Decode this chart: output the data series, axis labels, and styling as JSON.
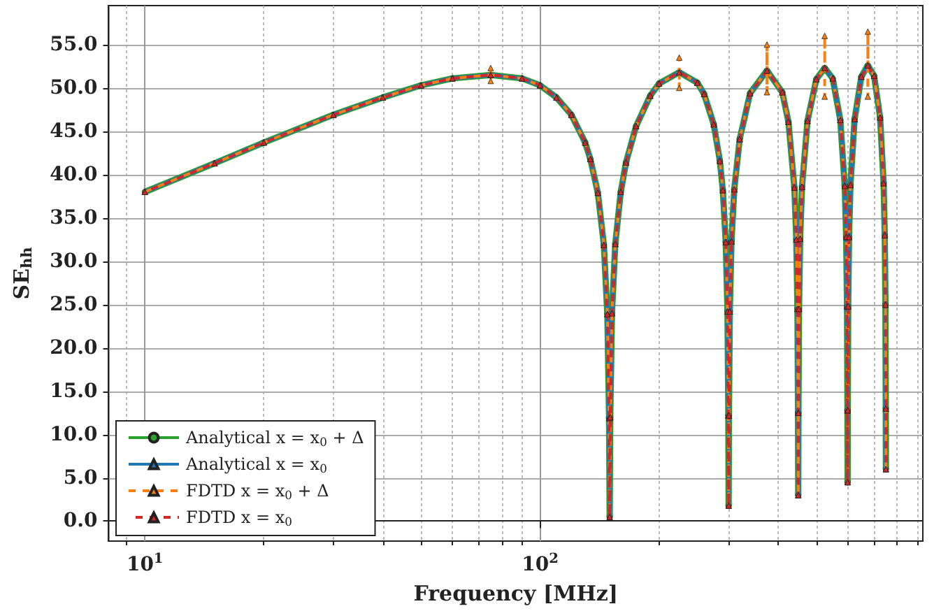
{
  "chart_data": {
    "type": "line",
    "xlabel": "Frequency [MHz]",
    "ylabel": "SE$_{hh}$",
    "log": "x",
    "grid": true,
    "legend": "bottom left",
    "xlim": [
      8.1,
      930
    ],
    "ylim": [
      -2.3,
      59.5
    ],
    "xticks": [
      {
        "value": 9,
        "label": null
      },
      {
        "value": 10,
        "label": "10$^{1}$"
      },
      {
        "value": 20,
        "label": null
      },
      {
        "value": 30,
        "label": null
      },
      {
        "value": 40,
        "label": null
      },
      {
        "value": 50,
        "label": null
      },
      {
        "value": 60,
        "label": null
      },
      {
        "value": 70,
        "label": null
      },
      {
        "value": 80,
        "label": null
      },
      {
        "value": 90,
        "label": null
      },
      {
        "value": 100,
        "label": "10$^{2}$"
      },
      {
        "value": 200,
        "label": null
      },
      {
        "value": 300,
        "label": null
      },
      {
        "value": 400,
        "label": null
      },
      {
        "value": 500,
        "label": null
      },
      {
        "value": 600,
        "label": null
      },
      {
        "value": 700,
        "label": null
      },
      {
        "value": 800,
        "label": null
      },
      {
        "value": 900,
        "label": null
      }
    ],
    "yticks": [
      {
        "value": 0,
        "label": "0.0"
      },
      {
        "value": 5,
        "label": "5.0"
      },
      {
        "value": 10,
        "label": "10.0"
      },
      {
        "value": 15,
        "label": "15.0"
      },
      {
        "value": 20,
        "label": "20.0"
      },
      {
        "value": 25,
        "label": "25.0"
      },
      {
        "value": 30,
        "label": "30.0"
      },
      {
        "value": 35,
        "label": "35.0"
      },
      {
        "value": 40,
        "label": "40.0"
      },
      {
        "value": 45,
        "label": "45.0"
      },
      {
        "value": 50,
        "label": "50.0"
      },
      {
        "value": 55,
        "label": "55.0"
      }
    ],
    "x": [
      10,
      15,
      20,
      30,
      40,
      50,
      60,
      75,
      90,
      100,
      110,
      120,
      130,
      134,
      140,
      145,
      148,
      149.5,
      150,
      150.5,
      152,
      155,
      160,
      165,
      175,
      190,
      200,
      225,
      250,
      260,
      275,
      285,
      290,
      295,
      298,
      299.5,
      300,
      300.5,
      302,
      305,
      310,
      320,
      340,
      375,
      410,
      425,
      440,
      445,
      448,
      449.5,
      450,
      450.5,
      452,
      455,
      460,
      475,
      500,
      525,
      550,
      575,
      590,
      595,
      598,
      599.5,
      600,
      600.5,
      602,
      605,
      610,
      625,
      650,
      675,
      700,
      725,
      740,
      745,
      748,
      749.5,
      750
    ],
    "series": [
      {
        "name": "Analytical x = x$_{0}$ + Δ",
        "color": "#2ca02c",
        "marker": "circle",
        "line_style": "solid",
        "values": [
          38.0,
          41.3,
          43.7,
          46.9,
          48.9,
          50.3,
          51.1,
          51.5,
          51.1,
          50.3,
          48.9,
          46.9,
          43.7,
          41.8,
          37.9,
          31.9,
          23.9,
          11.9,
          0.5,
          12.0,
          24.0,
          32.0,
          38.0,
          41.4,
          45.6,
          49.1,
          50.5,
          51.8,
          50.6,
          49.3,
          45.8,
          41.6,
          38.2,
          32.2,
          24.2,
          12.2,
          1.8,
          12.2,
          24.2,
          32.3,
          38.3,
          44.1,
          49.4,
          52.0,
          49.5,
          46.1,
          38.5,
          32.5,
          24.5,
          12.5,
          3.0,
          12.5,
          24.5,
          32.6,
          38.6,
          46.2,
          51.0,
          52.3,
          51.1,
          46.3,
          38.7,
          32.8,
          24.8,
          12.8,
          4.5,
          12.8,
          24.8,
          32.8,
          38.8,
          46.4,
          51.3,
          52.6,
          51.4,
          46.6,
          39.0,
          33.0,
          25.0,
          13.0,
          6.0
        ]
      },
      {
        "name": "Analytical x = x$_{0}$",
        "color": "#1f77b4",
        "marker": "triangle",
        "line_style": "solid",
        "values": [
          38.0,
          41.3,
          43.7,
          46.9,
          48.9,
          50.3,
          51.1,
          51.5,
          51.1,
          50.3,
          48.9,
          46.9,
          43.7,
          41.8,
          37.9,
          31.9,
          23.9,
          11.9,
          0.5,
          12.0,
          24.0,
          32.0,
          38.0,
          41.4,
          45.6,
          49.1,
          50.5,
          51.8,
          50.6,
          49.3,
          45.8,
          41.6,
          38.2,
          32.2,
          24.2,
          12.2,
          1.8,
          12.2,
          24.2,
          32.3,
          38.3,
          44.1,
          49.4,
          52.0,
          49.5,
          46.1,
          38.5,
          32.5,
          24.5,
          12.5,
          3.0,
          12.5,
          24.5,
          32.6,
          38.6,
          46.2,
          51.0,
          52.3,
          51.1,
          46.3,
          38.7,
          32.8,
          24.8,
          12.8,
          4.5,
          12.8,
          24.8,
          32.8,
          38.8,
          46.4,
          51.3,
          52.6,
          51.4,
          46.6,
          39.0,
          33.0,
          25.0,
          13.0,
          6.0
        ]
      },
      {
        "name": "FDTD x = x$_{0}$ + Δ",
        "color": "#ff7f0e",
        "marker": "triangle",
        "line_style": "dashed",
        "x": [
          10,
          15,
          20,
          30,
          40,
          50,
          60,
          75,
          75,
          75,
          75,
          90,
          100,
          110,
          120,
          130,
          134,
          140,
          145,
          148,
          149.5,
          150,
          150.5,
          152,
          155,
          160,
          165,
          175,
          190,
          200,
          225,
          225,
          225,
          225,
          250,
          260,
          275,
          285,
          290,
          295,
          298,
          299.5,
          300,
          300.5,
          302,
          305,
          310,
          320,
          340,
          375,
          375,
          375,
          375,
          410,
          425,
          440,
          445,
          448,
          449.5,
          450,
          450.5,
          452,
          455,
          460,
          475,
          500,
          525,
          525,
          525,
          525,
          550,
          575,
          590,
          595,
          598,
          599.5,
          600,
          600.5,
          602,
          605,
          610,
          625,
          650,
          675,
          675,
          675,
          675,
          700,
          725,
          740,
          745,
          748,
          749.5,
          750
        ],
        "values": [
          38.0,
          41.3,
          43.7,
          46.9,
          48.9,
          50.3,
          51.1,
          51.5,
          52.3,
          50.8,
          51.5,
          51.1,
          50.3,
          48.9,
          46.9,
          43.7,
          41.8,
          37.9,
          31.9,
          23.9,
          11.9,
          0.5,
          12.0,
          24.0,
          32.0,
          38.0,
          41.4,
          45.6,
          49.1,
          50.5,
          51.8,
          53.5,
          50.0,
          51.8,
          50.6,
          49.3,
          45.8,
          41.6,
          38.2,
          32.2,
          24.2,
          12.2,
          1.8,
          12.2,
          24.2,
          32.3,
          38.3,
          44.1,
          49.4,
          52.0,
          55.0,
          49.5,
          52.0,
          49.5,
          46.1,
          38.5,
          32.5,
          24.5,
          12.5,
          3.0,
          12.5,
          24.5,
          32.6,
          38.6,
          46.2,
          51.0,
          52.3,
          56.0,
          49.0,
          52.3,
          51.1,
          46.3,
          38.7,
          32.8,
          24.8,
          12.8,
          4.5,
          12.8,
          24.8,
          32.8,
          38.8,
          46.4,
          51.3,
          52.6,
          56.5,
          49.0,
          52.6,
          51.4,
          46.6,
          39.0,
          33.0,
          25.0,
          13.0,
          6.0
        ]
      },
      {
        "name": "FDTD x = x$_{0}$",
        "color": "#d62728",
        "marker": "triangle",
        "line_style": "dashed",
        "values": [
          38.0,
          41.3,
          43.7,
          46.9,
          48.9,
          50.3,
          51.1,
          51.5,
          51.1,
          50.3,
          48.9,
          46.9,
          43.7,
          41.8,
          37.9,
          31.9,
          23.9,
          11.9,
          0.5,
          12.0,
          24.0,
          32.0,
          38.0,
          41.4,
          45.6,
          49.1,
          50.5,
          51.8,
          50.6,
          49.3,
          45.8,
          41.6,
          38.2,
          32.2,
          24.2,
          12.2,
          1.8,
          12.2,
          24.2,
          32.3,
          38.3,
          44.1,
          49.4,
          52.0,
          49.5,
          46.1,
          38.5,
          32.5,
          24.5,
          12.5,
          3.0,
          12.5,
          24.5,
          32.6,
          38.6,
          46.2,
          51.0,
          52.3,
          51.1,
          46.3,
          38.7,
          32.8,
          24.8,
          12.8,
          4.5,
          12.8,
          24.8,
          32.8,
          38.8,
          46.4,
          51.3,
          52.6,
          51.4,
          46.6,
          39.0,
          33.0,
          25.0,
          13.0,
          6.0
        ]
      }
    ]
  }
}
